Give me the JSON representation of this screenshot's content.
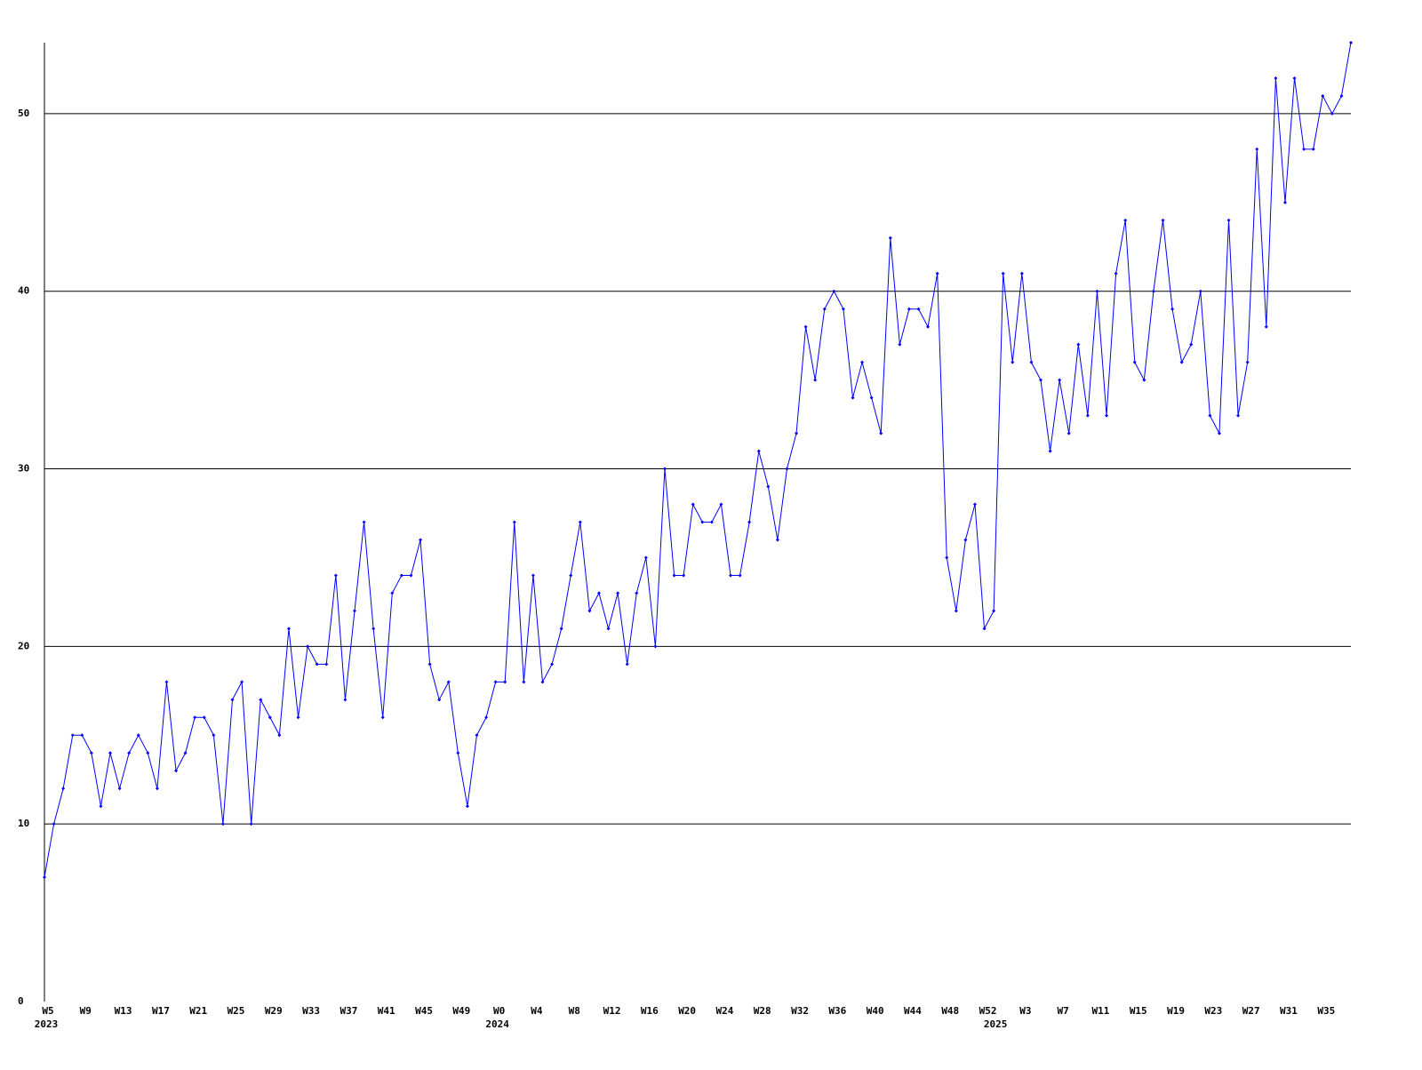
{
  "chart_data": {
    "type": "line",
    "categories": [
      "W5",
      null,
      null,
      null,
      "W9",
      null,
      null,
      null,
      "W13",
      null,
      null,
      null,
      "W17",
      null,
      null,
      null,
      "W21",
      null,
      null,
      null,
      "W25",
      null,
      null,
      null,
      "W29",
      null,
      null,
      null,
      "W33",
      null,
      null,
      null,
      "W37",
      null,
      null,
      null,
      "W41",
      null,
      null,
      null,
      "W45",
      null,
      null,
      null,
      "W49",
      null,
      null,
      null,
      "W0",
      null,
      null,
      null,
      "W4",
      null,
      null,
      null,
      "W8",
      null,
      null,
      null,
      "W12",
      null,
      null,
      null,
      "W16",
      null,
      null,
      null,
      "W20",
      null,
      null,
      null,
      "W24",
      null,
      null,
      null,
      "W28",
      null,
      null,
      null,
      "W32",
      null,
      null,
      null,
      "W36",
      null,
      null,
      null,
      "W40",
      null,
      null,
      null,
      "W44",
      null,
      null,
      null,
      "W48",
      null,
      null,
      null,
      "W52",
      null,
      null,
      null,
      "W3",
      null,
      null,
      null,
      "W7",
      null,
      null,
      null,
      "W11",
      null,
      null,
      null,
      "W15",
      null,
      null,
      null,
      "W19",
      null,
      null,
      null,
      "W23",
      null,
      null,
      null,
      "W27",
      null,
      null,
      null,
      "W31",
      null,
      null,
      null,
      "W35",
      null,
      null,
      null
    ],
    "years": [
      "2023",
      null,
      null,
      null,
      null,
      null,
      null,
      null,
      null,
      null,
      null,
      null,
      null,
      null,
      null,
      null,
      null,
      null,
      null,
      null,
      null,
      null,
      null,
      null,
      null,
      null,
      null,
      null,
      null,
      null,
      null,
      null,
      null,
      null,
      null,
      null,
      null,
      null,
      null,
      null,
      null,
      null,
      null,
      null,
      null,
      null,
      null,
      null,
      "2024",
      null,
      null,
      null,
      null,
      null,
      null,
      null,
      null,
      null,
      null,
      null,
      null,
      null,
      null,
      null,
      null,
      null,
      null,
      null,
      null,
      null,
      null,
      null,
      null,
      null,
      null,
      null,
      null,
      null,
      null,
      null,
      null,
      null,
      null,
      null,
      null,
      null,
      null,
      null,
      null,
      null,
      null,
      null,
      null,
      null,
      null,
      null,
      null,
      null,
      null,
      null,
      null,
      "2025",
      null,
      null,
      null,
      null,
      null,
      null,
      null,
      null,
      null,
      null,
      null,
      null,
      null,
      null,
      null,
      null,
      null,
      null,
      null,
      null,
      null,
      null,
      null,
      null,
      null,
      null,
      null,
      null,
      null,
      null,
      null,
      null,
      null,
      null,
      null,
      null,
      null
    ],
    "series": [
      {
        "color": "#0000ff",
        "values": [
          7,
          10,
          12,
          15,
          15,
          14,
          11,
          14,
          12,
          14,
          15,
          14,
          12,
          18,
          13,
          14,
          16,
          16,
          15,
          10,
          17,
          18,
          10,
          17,
          16,
          15,
          21,
          16,
          20,
          19,
          19,
          24,
          17,
          22,
          27,
          21,
          16,
          23,
          24,
          24,
          26,
          19,
          17,
          18,
          14,
          11,
          15,
          16,
          18,
          18,
          27,
          18,
          24,
          18,
          19,
          21,
          24,
          27,
          22,
          23,
          21,
          23,
          19,
          23,
          25,
          20,
          30,
          24,
          24,
          28,
          27,
          27,
          28,
          24,
          24,
          27,
          31,
          29,
          26,
          30,
          32,
          38,
          35,
          39,
          40,
          39,
          34,
          36,
          34,
          32,
          43,
          37,
          39,
          39,
          38,
          41,
          25,
          22,
          26,
          28,
          21,
          22,
          41,
          36,
          41,
          36,
          35,
          31,
          35,
          32,
          37,
          33,
          40,
          33,
          41,
          44,
          36,
          35,
          40,
          44,
          39,
          36,
          37,
          40,
          33,
          32,
          44,
          33,
          36,
          48,
          38,
          52,
          45,
          52,
          48,
          48,
          51,
          50,
          51,
          54
        ]
      }
    ],
    "ylim": [
      0,
      54
    ],
    "yticks": [
      0,
      10,
      20,
      30,
      40,
      50
    ],
    "grid": true
  }
}
